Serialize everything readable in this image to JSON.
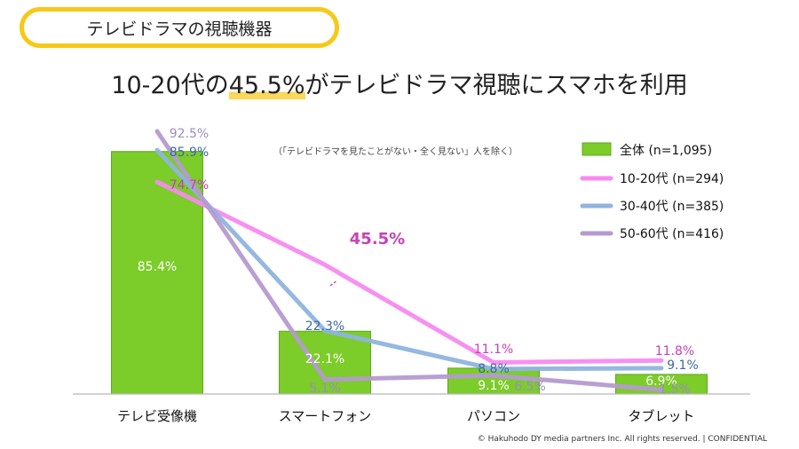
{
  "page": {
    "title": "テレビドラマの視聴機器",
    "headline_pre": "10-20代の",
    "headline_hl": "45.5%",
    "headline_post": "がテレビドラマ視聴にスマホを利用",
    "note": "（「テレビドラマを見たことがない・全く見ない」人を除く）",
    "copyright": "© Hakuhodo DY media partners Inc. All rights reserved. | CONFIDENTIAL"
  },
  "chart_data": {
    "type": "bar",
    "categories": [
      "テレビ受像機",
      "スマートフォン",
      "パソコン",
      "タブレット"
    ],
    "ylim": [
      0,
      100
    ],
    "grid": false,
    "legend_placement": "right",
    "bar_series": {
      "name": "全体 (n=1,095)",
      "values": [
        85.4,
        22.1,
        9.1,
        6.9
      ],
      "color": "#7ccc2a"
    },
    "line_series": [
      {
        "name": "10-20代 (n=294)",
        "values": [
          74.7,
          45.5,
          11.1,
          11.8
        ],
        "color": "#f78af0",
        "label_color": "#c840b8"
      },
      {
        "name": "30-40代 (n=385)",
        "values": [
          85.9,
          22.3,
          8.8,
          9.1
        ],
        "color": "#8fb4de",
        "label_color": "#3e6a9e"
      },
      {
        "name": "50-60代 (n=416)",
        "values": [
          92.5,
          5.1,
          6.5,
          1.5
        ],
        "color": "#b59ad0",
        "label_color": "#9f8bc0"
      }
    ],
    "bar_labels": [
      "85.4%",
      "22.1%",
      "9.1%",
      "6.9%"
    ],
    "line_labels": [
      [
        "74.7%",
        "",
        "11.1%",
        "11.8%"
      ],
      [
        "85.9%",
        "22.3%",
        "8.8%",
        "9.1%"
      ],
      [
        "92.5%",
        "5.1%",
        "6.5%",
        "1.5%"
      ]
    ],
    "annotation": {
      "text": "45.5%",
      "color": "#c840b8"
    }
  }
}
